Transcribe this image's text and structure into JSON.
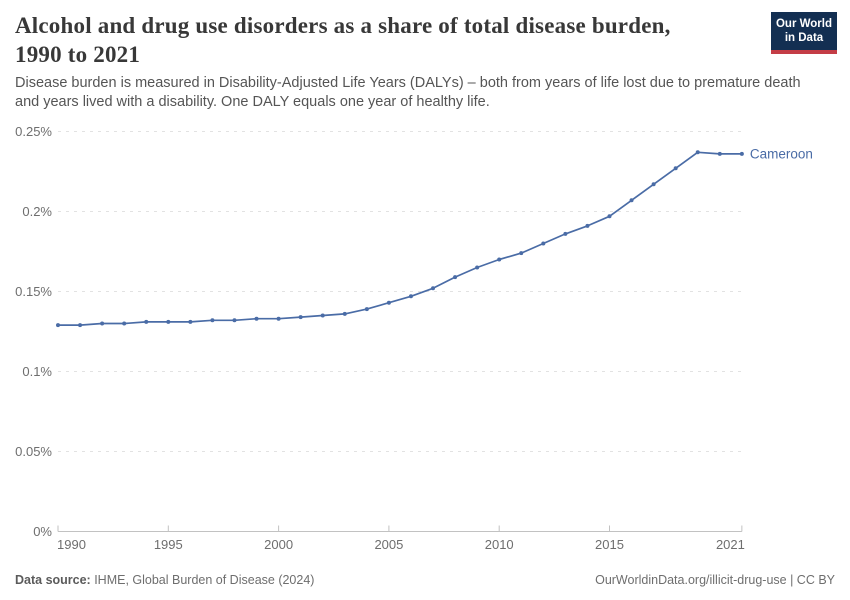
{
  "logo": {
    "line1": "Our World",
    "line2": "in Data",
    "bg_color": "#132f52",
    "stripe_color": "#c43d46"
  },
  "header": {
    "title_line1": "Alcohol and drug use disorders as a share of total disease burden,",
    "title_line2": "1990 to 2021",
    "subtitle_line1": "Disease burden is measured in Disability-Adjusted Life Years (DALYs) – both from years of life lost due to premature death",
    "subtitle_line2": "and years lived with a disability. One DALY equals one year of healthy life."
  },
  "chart_data": {
    "type": "line",
    "title": "Alcohol and drug use disorders as a share of total disease burden, 1990 to 2021",
    "unit": "% of total DALYs",
    "x": [
      1990,
      1991,
      1992,
      1993,
      1994,
      1995,
      1996,
      1997,
      1998,
      1999,
      2000,
      2001,
      2002,
      2003,
      2004,
      2005,
      2006,
      2007,
      2008,
      2009,
      2010,
      2011,
      2012,
      2013,
      2014,
      2015,
      2016,
      2017,
      2018,
      2019,
      2020,
      2021
    ],
    "series": [
      {
        "name": "Cameroon",
        "color": "#4a6ca6",
        "values": [
          0.129,
          0.129,
          0.13,
          0.13,
          0.131,
          0.131,
          0.131,
          0.132,
          0.132,
          0.133,
          0.133,
          0.134,
          0.135,
          0.136,
          0.139,
          0.143,
          0.147,
          0.152,
          0.159,
          0.165,
          0.17,
          0.174,
          0.18,
          0.186,
          0.191,
          0.197,
          0.207,
          0.217,
          0.227,
          0.237,
          0.236,
          0.236
        ]
      }
    ],
    "ylim": [
      0,
      0.25
    ],
    "yticks": [
      {
        "value": 0.0,
        "label": "0%"
      },
      {
        "value": 0.05,
        "label": "0.05%"
      },
      {
        "value": 0.1,
        "label": "0.1%"
      },
      {
        "value": 0.15,
        "label": "0.15%"
      },
      {
        "value": 0.2,
        "label": "0.2%"
      },
      {
        "value": 0.25,
        "label": "0.25%"
      }
    ],
    "xticks": [
      1990,
      1995,
      2000,
      2005,
      2010,
      2015,
      2021
    ],
    "grid": "horizontal-dashed",
    "legend": "end-of-line-label"
  },
  "footer": {
    "source_label": "Data source:",
    "source_text": " IHME, Global Burden of Disease (2024)",
    "rights": "OurWorldinData.org/illicit-drug-use | CC BY"
  }
}
